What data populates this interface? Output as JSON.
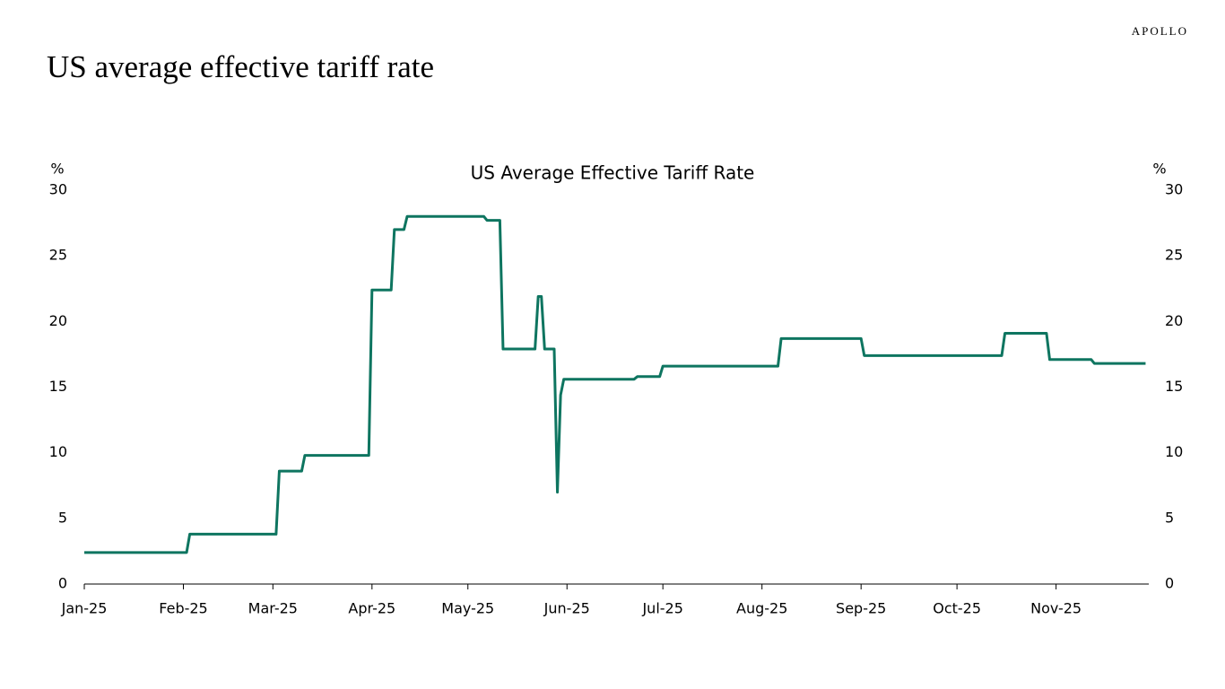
{
  "brand": "APOLLO",
  "page_title": "US average effective tariff rate",
  "chart_data": {
    "type": "line",
    "title": "US Average Effective Tariff Rate",
    "y_label": "%",
    "y2_label": "%",
    "color": "#0e7560",
    "x": [
      0,
      32,
      33,
      60,
      61,
      68,
      69,
      89,
      90,
      96,
      97,
      100,
      101,
      125,
      126,
      130,
      131,
      141,
      142,
      143,
      144,
      147,
      148,
      149,
      150,
      172,
      173,
      180,
      181,
      217,
      218,
      243,
      244,
      287,
      288,
      301,
      302,
      315,
      316,
      332
    ],
    "values": [
      2.4,
      2.4,
      3.8,
      3.8,
      8.6,
      8.6,
      9.8,
      9.8,
      22.4,
      22.4,
      27.0,
      27.0,
      28.0,
      28.0,
      27.7,
      27.7,
      17.9,
      17.9,
      21.9,
      21.9,
      17.9,
      17.9,
      7.0,
      14.4,
      15.6,
      15.6,
      15.8,
      15.8,
      16.6,
      16.6,
      18.7,
      18.7,
      17.4,
      17.4,
      19.1,
      19.1,
      17.1,
      17.1,
      16.8,
      16.8
    ],
    "xlim": [
      0,
      333
    ],
    "xticks": [
      {
        "value": 0,
        "label": "Jan-25"
      },
      {
        "value": 31,
        "label": "Feb-25"
      },
      {
        "value": 59,
        "label": "Mar-25"
      },
      {
        "value": 90,
        "label": "Apr-25"
      },
      {
        "value": 120,
        "label": "May-25"
      },
      {
        "value": 151,
        "label": "Jun-25"
      },
      {
        "value": 181,
        "label": "Jul-25"
      },
      {
        "value": 212,
        "label": "Aug-25"
      },
      {
        "value": 243,
        "label": "Sep-25"
      },
      {
        "value": 273,
        "label": "Oct-25"
      },
      {
        "value": 304,
        "label": "Nov-25"
      }
    ],
    "ylim": [
      0,
      30
    ],
    "yticks": [
      0,
      5,
      10,
      15,
      20,
      25,
      30
    ],
    "y2lim": [
      0,
      30
    ],
    "y2ticks": [
      0,
      5,
      10,
      15,
      20,
      25,
      30
    ],
    "grid": false
  }
}
